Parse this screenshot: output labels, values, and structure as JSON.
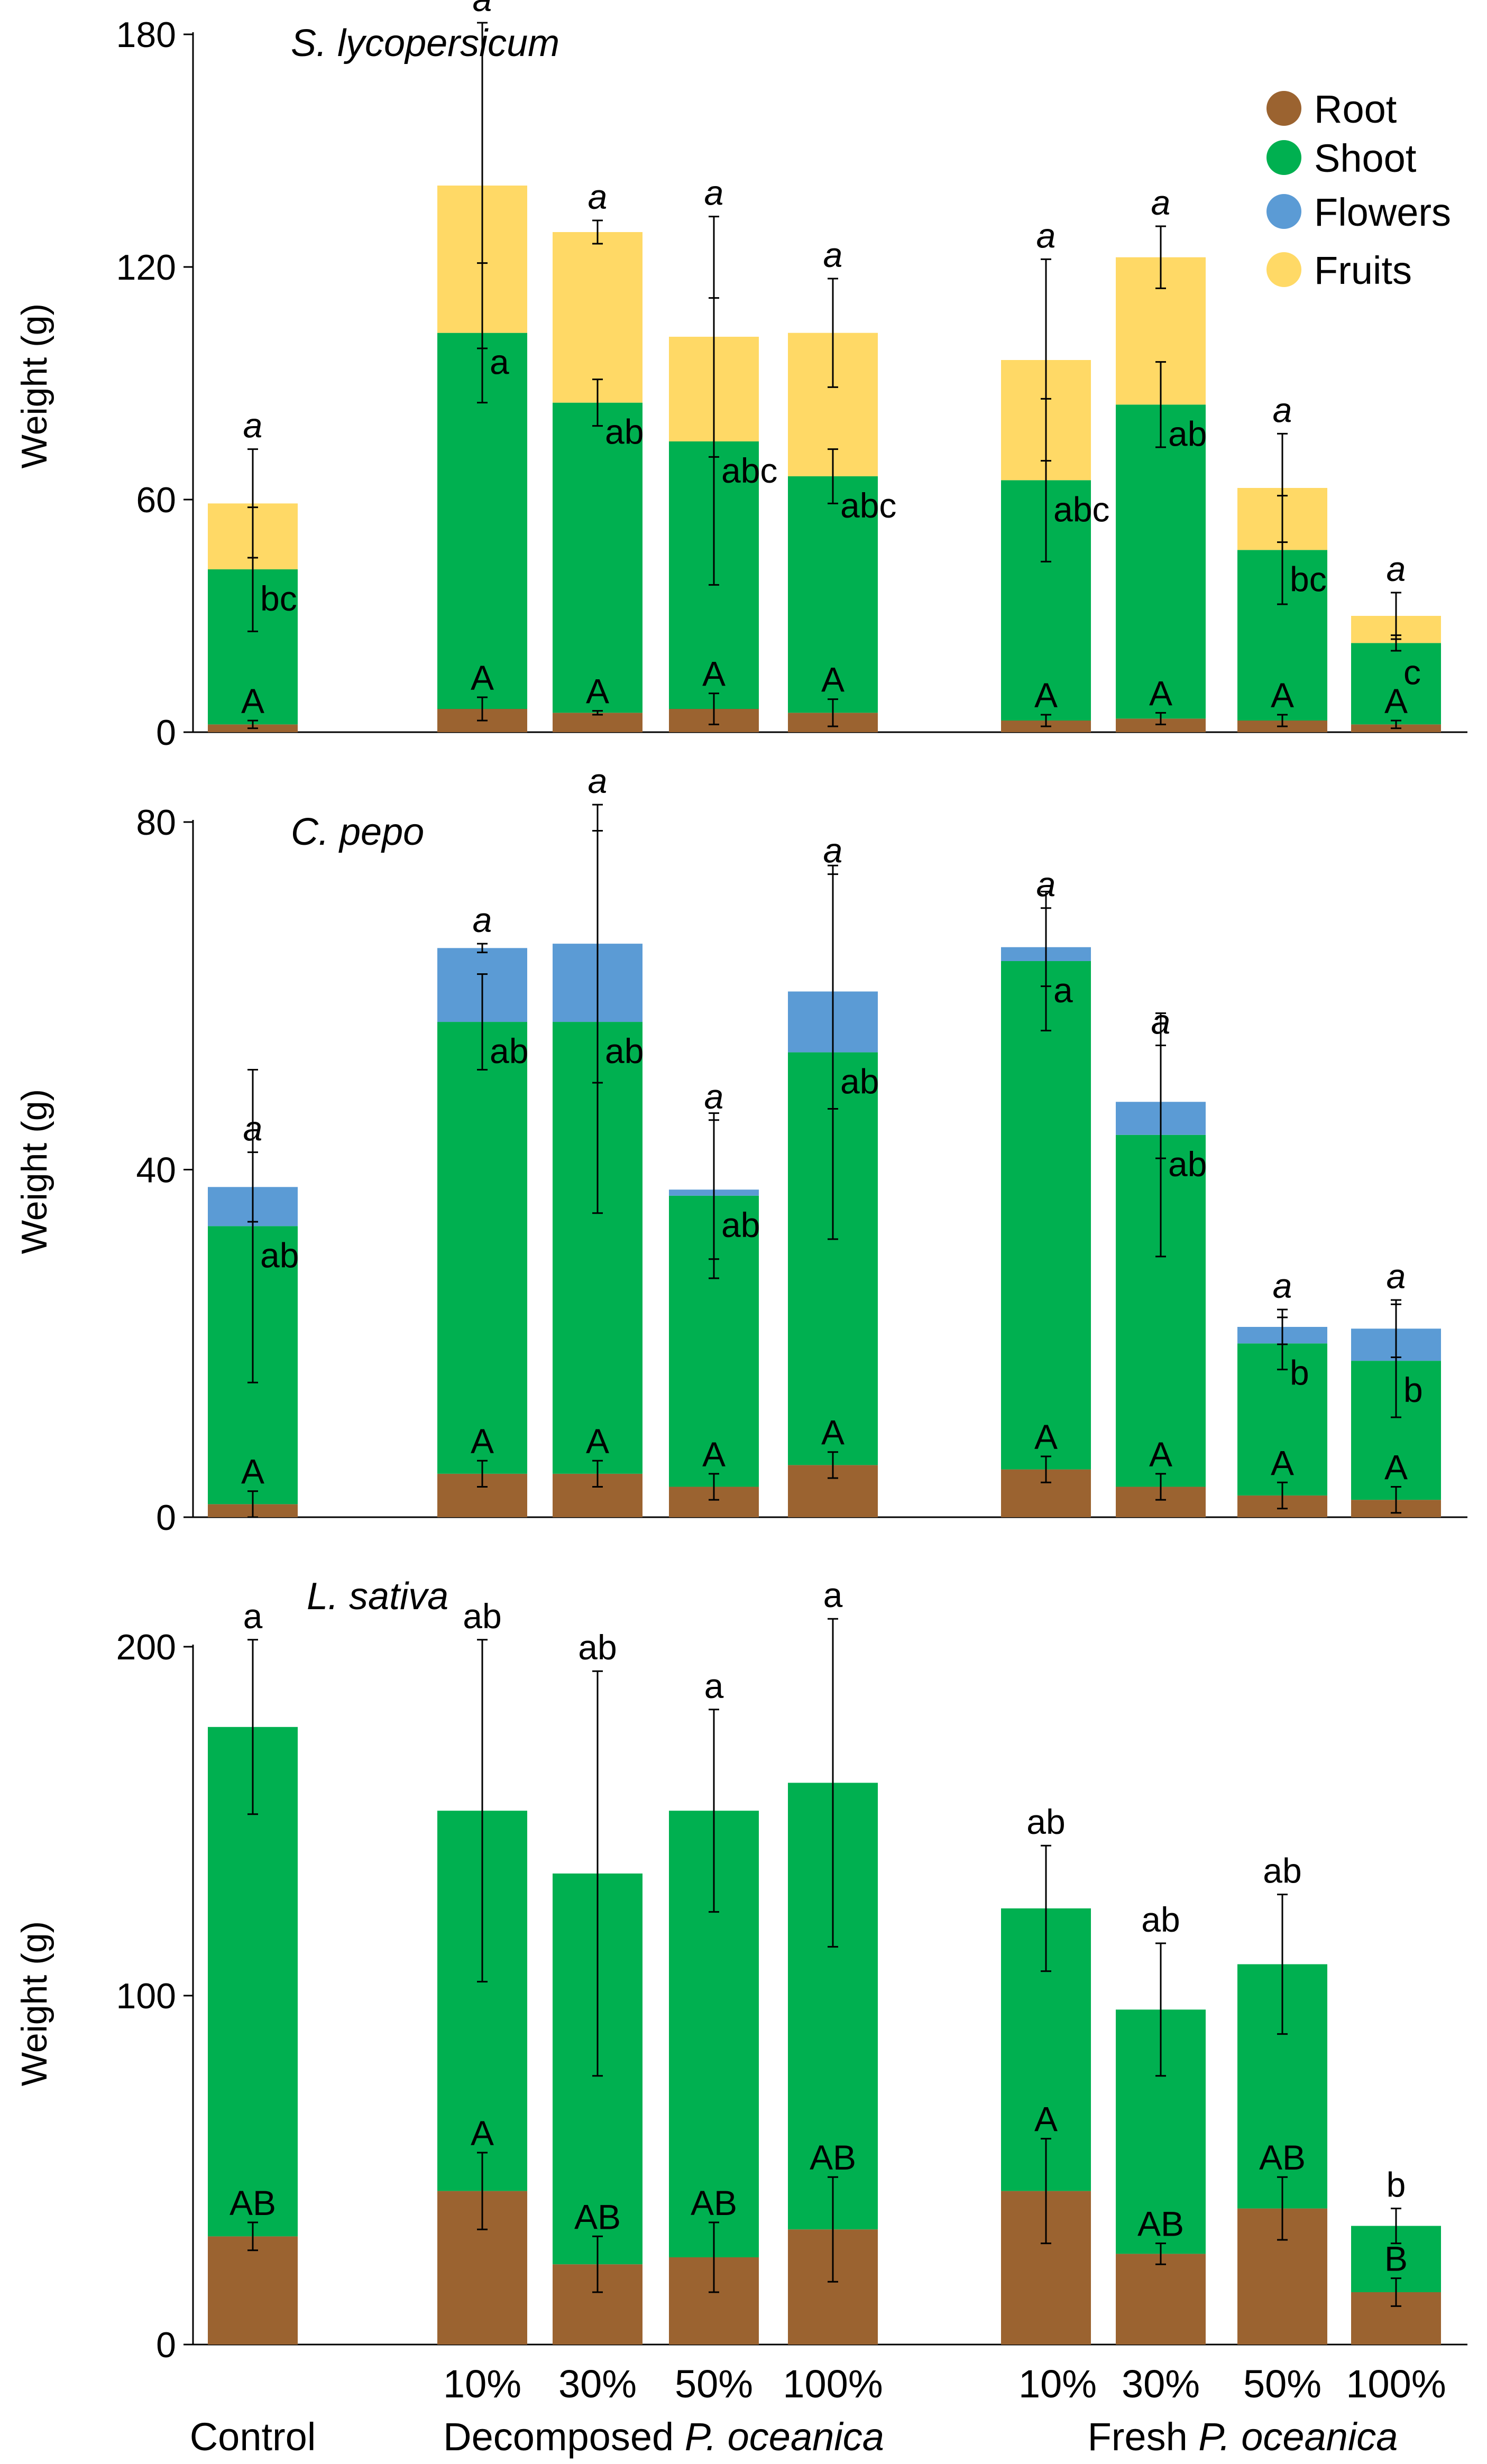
{
  "figure": {
    "group_labels": {
      "control": "Control",
      "decomposed_prefix": "Decomposed ",
      "decomposed_species": "P. oceanica",
      "fresh_prefix": "Fresh ",
      "fresh_species": "P. oceanica"
    },
    "dose_labels": [
      "10%",
      "30%",
      "50%",
      "100%",
      "10%",
      "30%",
      "50%",
      "100%"
    ]
  },
  "legend": [
    {
      "name": "Root",
      "color": "#9B6330"
    },
    {
      "name": "Shoot",
      "color": "#00B050"
    },
    {
      "name": "Flowers",
      "color": "#5B9BD5"
    },
    {
      "name": "Fruits",
      "color": "#FFD966"
    }
  ],
  "colors": {
    "root": "#9B6330",
    "shoot": "#00B050",
    "flowers": "#5B9BD5",
    "fruits": "#FFD966"
  },
  "chart_data": [
    {
      "type": "bar",
      "stacked": true,
      "title": "S. lycopersicum",
      "ylabel": "Weight (g)",
      "ylim": [
        0,
        180
      ],
      "yticks": [
        0,
        60,
        120,
        180
      ],
      "categories": [
        "Control",
        "Decomposed 10%",
        "Decomposed 30%",
        "Decomposed 50%",
        "Decomposed 100%",
        "Fresh 10%",
        "Fresh 30%",
        "Fresh 50%",
        "Fresh 100%"
      ],
      "series": [
        {
          "name": "Root",
          "values": [
            2,
            6,
            5,
            6,
            5,
            3,
            3.5,
            3,
            2
          ],
          "errors": [
            1,
            3,
            0.5,
            4,
            3.5,
            1.5,
            1.5,
            1.5,
            1
          ]
        },
        {
          "name": "Shoot",
          "values": [
            40,
            97,
            80,
            69,
            61,
            62,
            81,
            44,
            21
          ],
          "errors": [
            16,
            18,
            6,
            37,
            7,
            21,
            11,
            14,
            2
          ]
        },
        {
          "name": "Fruits",
          "values": [
            17,
            38,
            44,
            27,
            37,
            31,
            38,
            16,
            7
          ],
          "errors": [
            14,
            42,
            3,
            31,
            14,
            26,
            8,
            14,
            6
          ]
        }
      ],
      "root_letters": [
        "A",
        "A",
        "A",
        "A",
        "A",
        "A",
        "A",
        "A",
        "A"
      ],
      "shoot_letters": [
        "bc",
        "a",
        "ab",
        "abc",
        "abc",
        "abc",
        "ab",
        "bc",
        "c"
      ],
      "total_letters": [
        "a",
        "a",
        "a",
        "a",
        "a",
        "a",
        "a",
        "a",
        "a"
      ]
    },
    {
      "type": "bar",
      "stacked": true,
      "title": "C. pepo",
      "ylabel": "Weight (g)",
      "ylim": [
        0,
        80
      ],
      "yticks": [
        0,
        40,
        80
      ],
      "categories": [
        "Control",
        "Decomposed 10%",
        "Decomposed 30%",
        "Decomposed 50%",
        "Decomposed 100%",
        "Fresh 10%",
        "Fresh 30%",
        "Fresh 50%",
        "Fresh 100%"
      ],
      "series": [
        {
          "name": "Root",
          "values": [
            1.5,
            5,
            5,
            3.5,
            6,
            5.5,
            3.5,
            2.5,
            2
          ],
          "errors": [
            1.5,
            1.5,
            1.5,
            1.5,
            1.5,
            1.5,
            1.5,
            1.5,
            1.5
          ]
        },
        {
          "name": "Shoot",
          "values": [
            32,
            52,
            52,
            33.5,
            47.5,
            58.5,
            40.5,
            17.5,
            16
          ],
          "errors": [
            18,
            5.5,
            22,
            9.5,
            21.5,
            8,
            14,
            3,
            6.5
          ]
        },
        {
          "name": "Flowers",
          "values": [
            4.5,
            8.5,
            9,
            0.7,
            7,
            1.6,
            3.8,
            1.9,
            3.7
          ],
          "errors": [
            4,
            0.5,
            16,
            8,
            13.5,
            4.5,
            6.5,
            2,
            3.3
          ]
        }
      ],
      "root_letters": [
        "A",
        "A",
        "A",
        "A",
        "A",
        "A",
        "A",
        "A",
        "A"
      ],
      "shoot_letters": [
        "ab",
        "ab",
        "ab",
        "ab",
        "ab",
        "a",
        "ab",
        "b",
        "b"
      ],
      "total_letters": [
        "a",
        "a",
        "a",
        "a",
        "a",
        "a",
        "a",
        "a",
        "a"
      ]
    },
    {
      "type": "bar",
      "stacked": true,
      "title": "L. sativa",
      "ylabel": "Weight (g)",
      "ylim": [
        0,
        200
      ],
      "yticks": [
        0,
        100,
        200
      ],
      "categories": [
        "Control",
        "Decomposed 10%",
        "Decomposed 30%",
        "Decomposed 50%",
        "Decomposed 100%",
        "Fresh 10%",
        "Fresh 30%",
        "Fresh 50%",
        "Fresh 100%"
      ],
      "series": [
        {
          "name": "Root",
          "values": [
            31,
            44,
            23,
            25,
            33,
            44,
            26,
            39,
            15
          ],
          "errors": [
            4,
            11,
            8,
            10,
            15,
            15,
            3,
            9,
            4
          ]
        },
        {
          "name": "Shoot",
          "values": [
            146,
            109,
            112,
            128,
            128,
            81,
            70,
            70,
            19
          ],
          "errors": [
            25,
            49,
            58,
            29,
            47,
            18,
            19,
            20,
            5
          ]
        }
      ],
      "root_letters": [
        "AB",
        "A",
        "AB",
        "AB",
        "AB",
        "A",
        "AB",
        "AB",
        "B"
      ],
      "total_letters": [
        "a",
        "ab",
        "ab",
        "a",
        "a",
        "ab",
        "ab",
        "ab",
        "b"
      ]
    }
  ]
}
